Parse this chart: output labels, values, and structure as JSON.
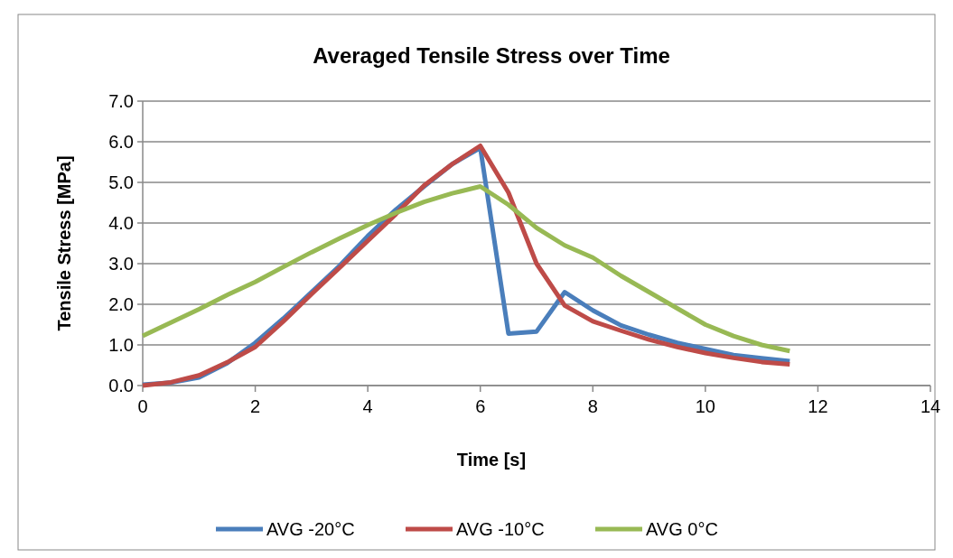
{
  "chart_data": {
    "type": "line",
    "title": "Averaged Tensile Stress over Time",
    "xlabel": "Time [s]",
    "ylabel": "Tensile Stress [MPa]",
    "x": [
      0,
      0.5,
      1,
      1.5,
      2,
      2.5,
      3,
      3.5,
      4,
      4.5,
      5,
      5.5,
      6,
      6.5,
      7,
      7.5,
      8,
      8.5,
      9,
      9.5,
      10,
      10.5,
      11,
      11.5
    ],
    "series": [
      {
        "name": "AVG -20°C",
        "color": "#4a7ebb",
        "values": [
          0.02,
          0.07,
          0.2,
          0.55,
          1.05,
          1.65,
          2.3,
          2.95,
          3.68,
          4.33,
          4.9,
          5.45,
          5.85,
          1.28,
          1.33,
          2.3,
          1.85,
          1.48,
          1.25,
          1.05,
          0.9,
          0.75,
          0.67,
          0.6
        ]
      },
      {
        "name": "AVG -10°C",
        "color": "#be4b48",
        "values": [
          0,
          0.08,
          0.25,
          0.57,
          0.95,
          1.58,
          2.25,
          2.9,
          3.56,
          4.22,
          4.92,
          5.45,
          5.9,
          4.75,
          3.0,
          1.97,
          1.58,
          1.35,
          1.13,
          0.95,
          0.8,
          0.68,
          0.58,
          0.52
        ]
      },
      {
        "name": "AVG 0°C",
        "color": "#98b954",
        "values": [
          1.22,
          1.55,
          1.88,
          2.23,
          2.55,
          2.92,
          3.28,
          3.62,
          3.95,
          4.25,
          4.52,
          4.73,
          4.9,
          4.45,
          3.88,
          3.45,
          3.15,
          2.7,
          2.3,
          1.9,
          1.5,
          1.22,
          1.0,
          0.85
        ]
      }
    ],
    "xlim": [
      0,
      14
    ],
    "xticks": [
      0,
      2,
      4,
      6,
      8,
      10,
      12,
      14
    ],
    "ylim": [
      0,
      7
    ],
    "yticks": [
      {
        "value": 0,
        "label": "0.0"
      },
      {
        "value": 1,
        "label": "1.0"
      },
      {
        "value": 2,
        "label": "2.0"
      },
      {
        "value": 3,
        "label": "3.0"
      },
      {
        "value": 4,
        "label": "4.0"
      },
      {
        "value": 5,
        "label": "5.0"
      },
      {
        "value": 6,
        "label": "6.0"
      },
      {
        "value": 7,
        "label": "7.0"
      }
    ],
    "grid": "y",
    "legend": "bottom",
    "marker": "none",
    "line_style": "solid"
  }
}
